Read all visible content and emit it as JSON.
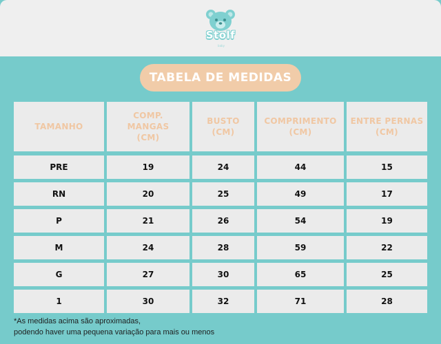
{
  "brand": {
    "name": "Stolf",
    "tagline": "baby"
  },
  "title": "TABELA DE MEDIDAS",
  "table": {
    "headers": [
      [
        "TAMANHO"
      ],
      [
        "COMP.",
        "MANGAS",
        "(CM)"
      ],
      [
        "BUSTO",
        "(CM)"
      ],
      [
        "COMPRIMENTO",
        "(CM)"
      ],
      [
        "ENTRE PERNAS",
        "(CM)"
      ]
    ],
    "rows": [
      [
        "PRE",
        "19",
        "24",
        "44",
        "15"
      ],
      [
        "RN",
        "20",
        "25",
        "49",
        "17"
      ],
      [
        "P",
        "21",
        "26",
        "54",
        "19"
      ],
      [
        "M",
        "24",
        "28",
        "59",
        "22"
      ],
      [
        "G",
        "27",
        "30",
        "65",
        "25"
      ],
      [
        "1",
        "30",
        "32",
        "71",
        "28"
      ]
    ]
  },
  "footnote": [
    "*As medidas acima são aproximadas,",
    "podendo haver uma pequena variação para mais ou menos"
  ],
  "colors": {
    "teal": "#76cbcb",
    "peach": "#f1cca9",
    "cell": "#ebebeb",
    "header_text": "#f0c7a3"
  }
}
